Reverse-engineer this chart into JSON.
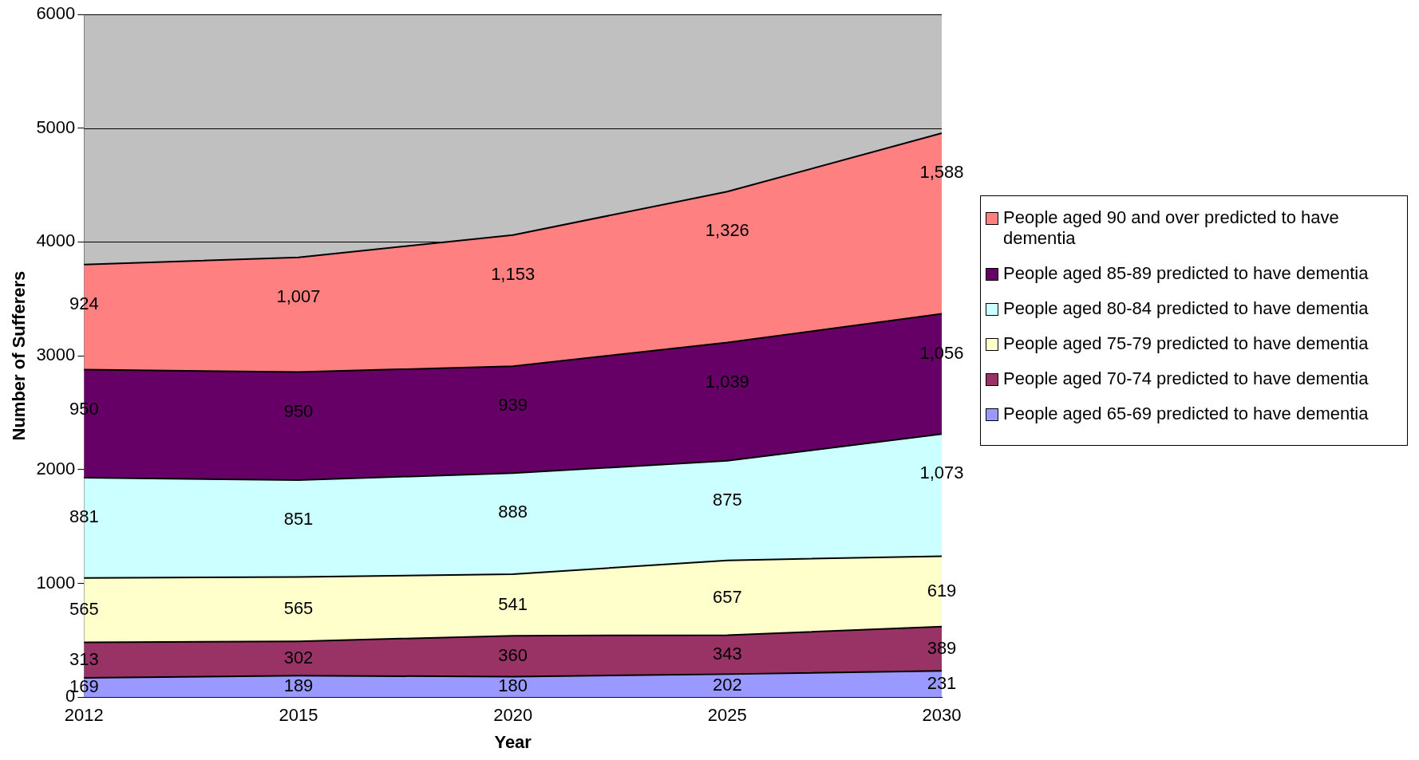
{
  "chart_data": {
    "type": "area",
    "stacked": true,
    "xlabel": "Year",
    "ylabel": "Number of Sufferers",
    "categories": [
      "2012",
      "2015",
      "2020",
      "2025",
      "2030"
    ],
    "series": [
      {
        "name": "People aged 65-69 predicted to have dementia",
        "color": "#9999ff",
        "values": [
          169,
          189,
          180,
          202,
          231
        ],
        "value_labels": [
          "169",
          "189",
          "180",
          "202",
          "231"
        ]
      },
      {
        "name": "People aged 70-74 predicted to have dementia",
        "color": "#993366",
        "values": [
          313,
          302,
          360,
          343,
          389
        ],
        "value_labels": [
          "313",
          "302",
          "360",
          "343",
          "389"
        ]
      },
      {
        "name": "People aged 75-79 predicted to have dementia",
        "color": "#ffffcc",
        "values": [
          565,
          565,
          541,
          657,
          619
        ],
        "value_labels": [
          "565",
          "565",
          "541",
          "657",
          "619"
        ]
      },
      {
        "name": "People aged 80-84 predicted to have dementia",
        "color": "#ccffff",
        "values": [
          881,
          851,
          888,
          875,
          1073
        ],
        "value_labels": [
          "881",
          "851",
          "888",
          "875",
          "1,073"
        ]
      },
      {
        "name": "People aged 85-89 predicted to have dementia",
        "color": "#660066",
        "values": [
          950,
          950,
          939,
          1039,
          1056
        ],
        "value_labels": [
          "950",
          "950",
          "939",
          "1,039",
          "1,056"
        ]
      },
      {
        "name": "People aged 90 and over predicted to have dementia",
        "color": "#ff8080",
        "values": [
          924,
          1007,
          1153,
          1326,
          1588
        ],
        "value_labels": [
          "924",
          "1,007",
          "1,153",
          "1,326",
          "1,588"
        ]
      }
    ],
    "ylim": [
      0,
      6000
    ],
    "yticks": [
      0,
      1000,
      2000,
      3000,
      4000,
      5000,
      6000
    ],
    "grid": "y",
    "legend": "right"
  }
}
